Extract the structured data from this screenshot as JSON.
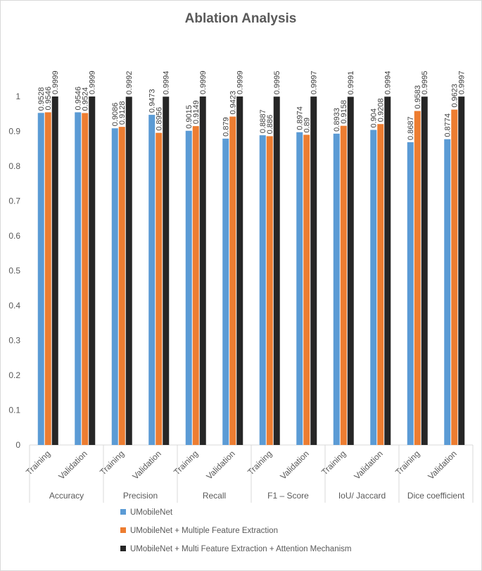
{
  "chart_data": {
    "type": "bar",
    "title": "Ablation Analysis",
    "xlabel": "",
    "ylabel": "",
    "ylim": [
      0,
      1
    ],
    "yticks": [
      "0",
      "0.1",
      "0.2",
      "0.3",
      "0.4",
      "0.5",
      "0.6",
      "0.7",
      "0.8",
      "0.9",
      "1"
    ],
    "grid": false,
    "legend_position": "bottom",
    "groups": [
      "Accuracy",
      "Precision",
      "Recall",
      "F1 – Score",
      "IoU/ Jaccard",
      "Dice coefficient"
    ],
    "subcategories": [
      "Training",
      "Validation"
    ],
    "categories": [
      "Accuracy Training",
      "Accuracy Validation",
      "Precision Training",
      "Precision Validation",
      "Recall Training",
      "Recall Validation",
      "F1 – Score Training",
      "F1 – Score Validation",
      "IoU/ Jaccard Training",
      "IoU/ Jaccard Validation",
      "Dice coefficient Training",
      "Dice coefficient Validation"
    ],
    "series": [
      {
        "name": "UMobileNet",
        "color": "#5b9bd5",
        "values": [
          0.9528,
          0.9546,
          0.9086,
          0.9473,
          0.9015,
          0.879,
          0.8887,
          0.8974,
          0.8933,
          0.904,
          0.8687,
          0.8774
        ],
        "labels": [
          "0.9528",
          "0.9546",
          "0.9086",
          "0.9473",
          "0.9015",
          "0.879",
          "0.8887",
          "0.8974",
          "0.8933",
          "0.904",
          "0.8687",
          "0.8774"
        ]
      },
      {
        "name": "UMobileNet + Multiple Feature Extraction",
        "color": "#ed7d31",
        "values": [
          0.9546,
          0.9524,
          0.9128,
          0.8956,
          0.9149,
          0.9423,
          0.886,
          0.89,
          0.9158,
          0.9208,
          0.9583,
          0.9623
        ],
        "labels": [
          "0.9546",
          "0.9524",
          "0.9128",
          "0.8956",
          "0.9149",
          "0.9423",
          "0.886",
          "0.89",
          "0.9158",
          "0.9208",
          "0.9583",
          "0.9623"
        ]
      },
      {
        "name": "UMobileNet + Multi Feature Extraction + Attention Mechanism",
        "color": "#262626",
        "values": [
          0.9999,
          0.9999,
          0.9992,
          0.9994,
          0.9999,
          0.9999,
          0.9995,
          0.9997,
          0.9991,
          0.9994,
          0.9995,
          0.9997
        ],
        "labels": [
          "0.9999",
          "0.9999",
          "0.9992",
          "0.9994",
          "0.9999",
          "0.9999",
          "0.9995",
          "0.9997",
          "0.9991",
          "0.9994",
          "0.9995",
          "0.9997"
        ]
      }
    ]
  }
}
